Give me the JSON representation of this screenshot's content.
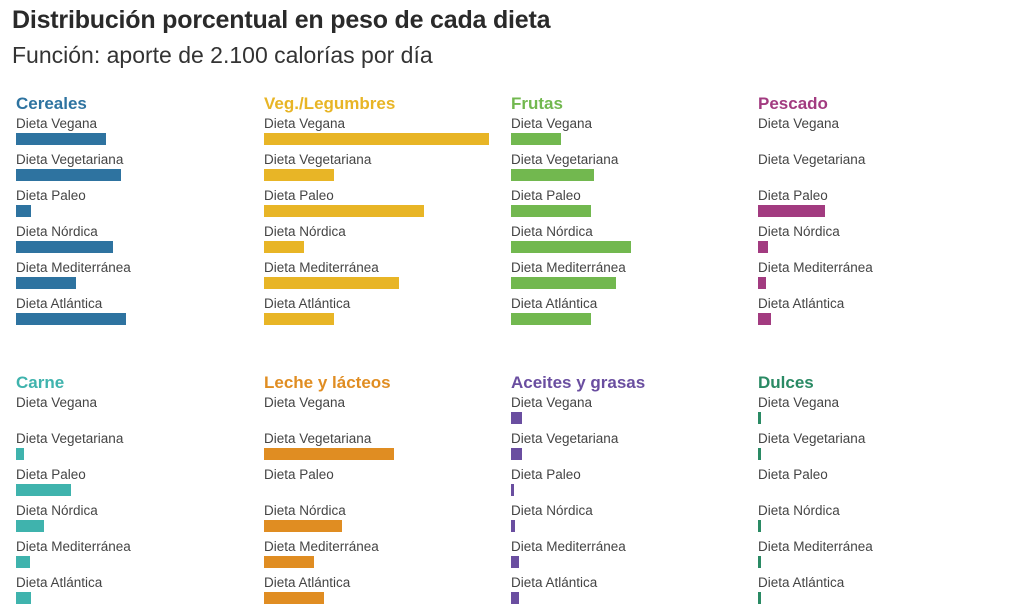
{
  "header": {
    "title": "Distribución porcentual en peso de cada dieta",
    "subtitle": "Función: aporte de 2.100 calorías por día"
  },
  "chart_data": [
    {
      "type": "bar",
      "title": "Cereales",
      "color": "#2e73a0",
      "categories": [
        "Dieta Vegana",
        "Dieta Vegetariana",
        "Dieta Paleo",
        "Dieta Nórdica",
        "Dieta Mediterránea",
        "Dieta Atlántica"
      ],
      "values": [
        9,
        10.5,
        1.5,
        9.7,
        6,
        11
      ]
    },
    {
      "type": "bar",
      "title": "Veg./Legumbres",
      "color": "#e8b526",
      "categories": [
        "Dieta Vegana",
        "Dieta Vegetariana",
        "Dieta Paleo",
        "Dieta Nórdica",
        "Dieta Mediterránea",
        "Dieta Atlántica"
      ],
      "values": [
        22.5,
        7,
        16,
        4,
        13.5,
        7
      ]
    },
    {
      "type": "bar",
      "title": "Frutas",
      "color": "#72b84f",
      "categories": [
        "Dieta Vegana",
        "Dieta Vegetariana",
        "Dieta Paleo",
        "Dieta Nórdica",
        "Dieta Mediterránea",
        "Dieta Atlántica"
      ],
      "values": [
        5,
        8.3,
        8,
        12,
        10.5,
        8
      ]
    },
    {
      "type": "bar",
      "title": "Pescado",
      "color": "#a23b80",
      "categories": [
        "Dieta Vegana",
        "Dieta Vegetariana",
        "Dieta Paleo",
        "Dieta Nórdica",
        "Dieta Mediterránea",
        "Dieta Atlántica"
      ],
      "values": [
        0,
        0,
        6.7,
        1,
        0.8,
        1.3
      ]
    },
    {
      "type": "bar",
      "title": "Carne",
      "color": "#3fb3ad",
      "categories": [
        "Dieta Vegana",
        "Dieta Vegetariana",
        "Dieta Paleo",
        "Dieta Nórdica",
        "Dieta Mediterránea",
        "Dieta Atlántica"
      ],
      "values": [
        0,
        0.8,
        5.5,
        2.8,
        1.4,
        1.5
      ]
    },
    {
      "type": "bar",
      "title": "Leche y lácteos",
      "color": "#e08d22",
      "categories": [
        "Dieta Vegana",
        "Dieta Vegetariana",
        "Dieta Paleo",
        "Dieta Nórdica",
        "Dieta Mediterránea",
        "Dieta Atlántica"
      ],
      "values": [
        0,
        13,
        0,
        7.8,
        5,
        6
      ]
    },
    {
      "type": "bar",
      "title": "Aceites y grasas",
      "color": "#6a4ea0",
      "categories": [
        "Dieta Vegana",
        "Dieta Vegetariana",
        "Dieta Paleo",
        "Dieta Nórdica",
        "Dieta Mediterránea",
        "Dieta Atlántica"
      ],
      "values": [
        1.1,
        1.1,
        0.3,
        0.4,
        0.8,
        0.8
      ]
    },
    {
      "type": "bar",
      "title": "Dulces",
      "color": "#2a8a64",
      "categories": [
        "Dieta Vegana",
        "Dieta Vegetariana",
        "Dieta Paleo",
        "Dieta Nórdica",
        "Dieta Mediterránea",
        "Dieta Atlántica"
      ],
      "values": [
        0.25,
        0.25,
        0,
        0.25,
        0.25,
        0.25
      ]
    }
  ]
}
